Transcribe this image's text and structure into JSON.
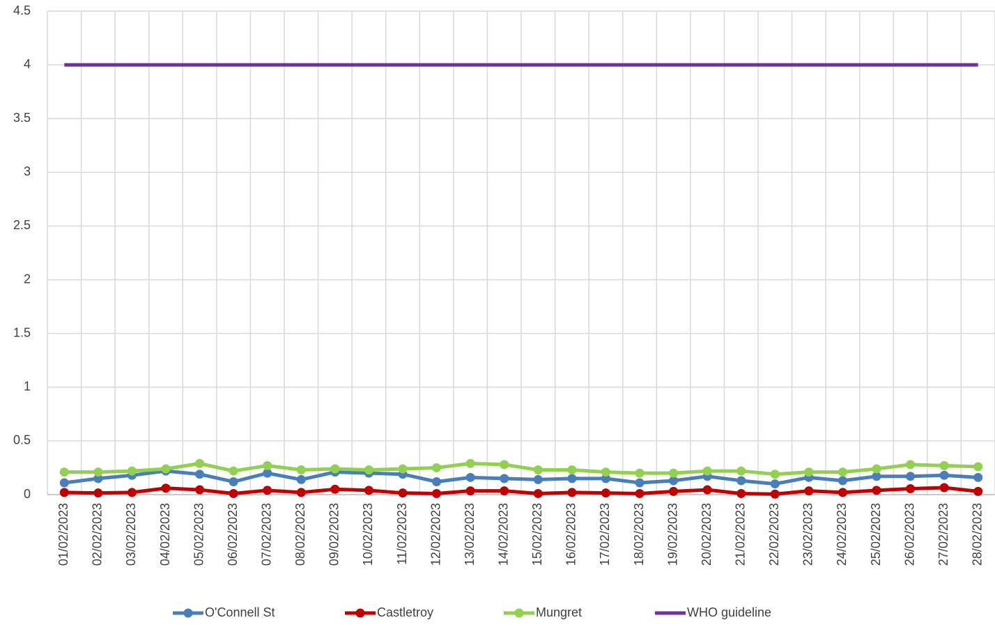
{
  "chart_data": {
    "type": "line",
    "categories": [
      "01/02/2023",
      "02/02/2023",
      "03/02/2023",
      "04/02/2023",
      "05/02/2023",
      "06/02/2023",
      "07/02/2023",
      "08/02/2023",
      "09/02/2023",
      "10/02/2023",
      "11/02/2023",
      "12/02/2023",
      "13/02/2023",
      "14/02/2023",
      "15/02/2023",
      "16/02/2023",
      "17/02/2023",
      "18/02/2023",
      "19/02/2023",
      "20/02/2023",
      "21/02/2023",
      "22/02/2023",
      "23/02/2023",
      "24/02/2023",
      "25/02/2023",
      "26/02/2023",
      "27/02/2023",
      "28/02/2023"
    ],
    "series": [
      {
        "name": "O'Connell St",
        "color": "#4a7ebb",
        "markers": true,
        "values": [
          0.11,
          0.15,
          0.18,
          0.22,
          0.19,
          0.12,
          0.2,
          0.14,
          0.21,
          0.2,
          0.19,
          0.12,
          0.16,
          0.15,
          0.14,
          0.15,
          0.15,
          0.11,
          0.13,
          0.17,
          0.13,
          0.1,
          0.16,
          0.13,
          0.17,
          0.17,
          0.18,
          0.16
        ]
      },
      {
        "name": "Castletroy",
        "color": "#c00000",
        "markers": true,
        "values": [
          0.02,
          0.015,
          0.02,
          0.06,
          0.045,
          0.01,
          0.04,
          0.02,
          0.05,
          0.04,
          0.015,
          0.01,
          0.035,
          0.035,
          0.01,
          0.02,
          0.015,
          0.01,
          0.03,
          0.045,
          0.01,
          0.005,
          0.035,
          0.02,
          0.04,
          0.055,
          0.065,
          0.03
        ]
      },
      {
        "name": "Mungret",
        "color": "#92d050",
        "markers": true,
        "values": [
          0.21,
          0.21,
          0.22,
          0.24,
          0.29,
          0.22,
          0.27,
          0.23,
          0.24,
          0.23,
          0.24,
          0.25,
          0.29,
          0.28,
          0.23,
          0.23,
          0.21,
          0.2,
          0.2,
          0.22,
          0.22,
          0.19,
          0.21,
          0.21,
          0.24,
          0.28,
          0.27,
          0.26
        ]
      },
      {
        "name": "WHO guideline",
        "color": "#7030a0",
        "markers": false,
        "values": [
          4,
          4,
          4,
          4,
          4,
          4,
          4,
          4,
          4,
          4,
          4,
          4,
          4,
          4,
          4,
          4,
          4,
          4,
          4,
          4,
          4,
          4,
          4,
          4,
          4,
          4,
          4,
          4
        ]
      }
    ],
    "ylim": [
      0,
      4.5
    ],
    "yticks": [
      0,
      0.5,
      1,
      1.5,
      2,
      2.5,
      3,
      3.5,
      4,
      4.5
    ],
    "grid": true,
    "legend": "bottom"
  }
}
